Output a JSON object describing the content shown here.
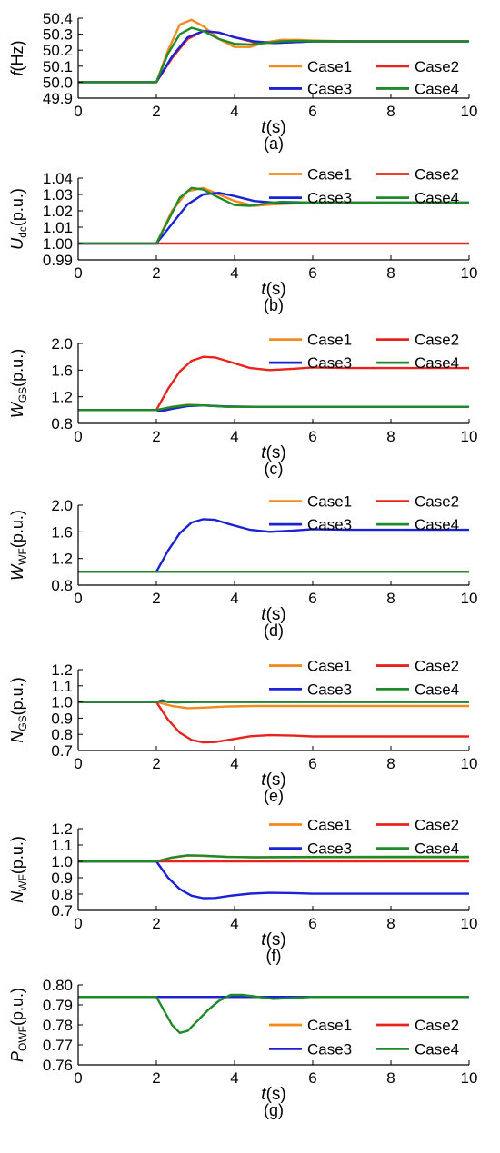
{
  "colors": {
    "Case1": "#f28a1e",
    "Case2": "#e8221c",
    "Case3": "#1a22d6",
    "Case4": "#1f8a2a"
  },
  "chart_data": [
    {
      "id": "a",
      "type": "line",
      "caption": "(a)",
      "ylabel": "f(Hz)",
      "ylabel_main": "f",
      "ylabel_sub": "",
      "ylabel_unit": "(Hz)",
      "ylabel_italic": true,
      "xlabel_main": "t",
      "xlabel_unit": "(s)",
      "xlim": [
        0,
        10
      ],
      "ylim": [
        49.9,
        50.4
      ],
      "xticks": [
        "0",
        "2",
        "4",
        "6",
        "8",
        "10"
      ],
      "yticks": [
        "49.9",
        "50.0",
        "50.1",
        "50.2",
        "50.3",
        "50.4"
      ],
      "legend": {
        "placement": "lower-right",
        "entries": [
          "Case1",
          "Case2",
          "Case3",
          "Case4"
        ]
      },
      "series": [
        {
          "name": "Case1",
          "x": [
            0,
            2,
            2.3,
            2.6,
            2.9,
            3.2,
            3.6,
            4.0,
            4.4,
            4.8,
            5.2,
            5.6,
            6.0,
            7,
            8,
            10
          ],
          "y": [
            50.0,
            50.0,
            50.2,
            50.36,
            50.39,
            50.35,
            50.27,
            50.22,
            50.22,
            50.25,
            50.265,
            50.265,
            50.26,
            50.255,
            50.255,
            50.255
          ]
        },
        {
          "name": "Case2",
          "x": [
            0,
            2,
            2.4,
            2.8,
            3.2,
            3.6,
            4.0,
            4.5,
            5.0,
            5.5,
            6.0,
            7,
            8,
            10
          ],
          "y": [
            50.0,
            50.0,
            50.15,
            50.27,
            50.32,
            50.31,
            50.28,
            50.25,
            50.245,
            50.25,
            50.255,
            50.255,
            50.255,
            50.255
          ]
        },
        {
          "name": "Case3",
          "x": [
            0,
            2,
            2.4,
            2.8,
            3.2,
            3.6,
            4.0,
            4.5,
            5.0,
            5.5,
            6.0,
            7,
            8,
            10
          ],
          "y": [
            50.0,
            50.0,
            50.16,
            50.28,
            50.32,
            50.31,
            50.28,
            50.255,
            50.245,
            50.25,
            50.255,
            50.255,
            50.255,
            50.255
          ]
        },
        {
          "name": "Case4",
          "x": [
            0,
            2,
            2.3,
            2.6,
            2.9,
            3.2,
            3.6,
            4.0,
            4.4,
            4.8,
            5.2,
            5.6,
            6.0,
            7,
            8,
            10
          ],
          "y": [
            50.0,
            50.0,
            50.18,
            50.3,
            50.34,
            50.32,
            50.27,
            50.24,
            50.235,
            50.245,
            50.255,
            50.258,
            50.255,
            50.255,
            50.255,
            50.255
          ]
        }
      ]
    },
    {
      "id": "b",
      "type": "line",
      "caption": "(b)",
      "ylabel": "Udc(p.u.)",
      "ylabel_main": "U",
      "ylabel_sub": "dc",
      "ylabel_unit": "(p.u.)",
      "ylabel_italic": true,
      "xlabel_main": "t",
      "xlabel_unit": "(s)",
      "xlim": [
        0,
        10
      ],
      "ylim": [
        0.99,
        1.04
      ],
      "xticks": [
        "0",
        "2",
        "4",
        "6",
        "8",
        "10"
      ],
      "yticks": [
        "0.99",
        "1.00",
        "1.01",
        "1.02",
        "1.03",
        "1.04"
      ],
      "legend": {
        "placement": "top-right",
        "entries": [
          "Case1",
          "Case2",
          "Case3",
          "Case4"
        ]
      },
      "series": [
        {
          "name": "Case1",
          "x": [
            0,
            2,
            2.4,
            2.8,
            3.2,
            3.6,
            4.0,
            4.5,
            5.0,
            6,
            7,
            8,
            10
          ],
          "y": [
            1.0,
            1.0,
            1.02,
            1.032,
            1.034,
            1.03,
            1.026,
            1.023,
            1.024,
            1.025,
            1.025,
            1.025,
            1.025
          ]
        },
        {
          "name": "Case2",
          "x": [
            0,
            2,
            4,
            6,
            8,
            10
          ],
          "y": [
            1.0,
            1.0,
            1.0,
            1.0,
            1.0,
            1.0
          ]
        },
        {
          "name": "Case3",
          "x": [
            0,
            2,
            2.4,
            2.8,
            3.2,
            3.6,
            4.0,
            4.5,
            5.0,
            5.5,
            6,
            7,
            8,
            10
          ],
          "y": [
            1.0,
            1.0,
            1.012,
            1.024,
            1.03,
            1.031,
            1.029,
            1.026,
            1.025,
            1.025,
            1.025,
            1.025,
            1.025,
            1.025
          ]
        },
        {
          "name": "Case4",
          "x": [
            0,
            2,
            2.3,
            2.6,
            2.9,
            3.2,
            3.6,
            4.0,
            4.4,
            4.8,
            5.2,
            6,
            7,
            8,
            10
          ],
          "y": [
            1.0,
            1.0,
            1.014,
            1.028,
            1.034,
            1.033,
            1.028,
            1.0235,
            1.023,
            1.0245,
            1.0255,
            1.025,
            1.025,
            1.025,
            1.025
          ]
        }
      ]
    },
    {
      "id": "c",
      "type": "line",
      "caption": "(c)",
      "ylabel": "WGS(p.u.)",
      "ylabel_main": "W",
      "ylabel_sub": "GS",
      "ylabel_unit": "(p.u.)",
      "ylabel_italic": true,
      "xlabel_main": "t",
      "xlabel_unit": "(s)",
      "xlim": [
        0,
        10
      ],
      "ylim": [
        0.8,
        2.0
      ],
      "xticks": [
        "0",
        "2",
        "4",
        "6",
        "8",
        "10"
      ],
      "yticks": [
        "0.8",
        "1.2",
        "1.6",
        "2.0"
      ],
      "legend": {
        "placement": "top-right",
        "entries": [
          "Case1",
          "Case2",
          "Case3",
          "Case4"
        ]
      },
      "series": [
        {
          "name": "Case1",
          "x": [
            0,
            2,
            2.4,
            2.8,
            3.2,
            3.8,
            4.5,
            6,
            8,
            10
          ],
          "y": [
            1.0,
            1.0,
            1.05,
            1.08,
            1.07,
            1.05,
            1.05,
            1.05,
            1.05,
            1.05
          ]
        },
        {
          "name": "Case2",
          "x": [
            0,
            2,
            2.3,
            2.6,
            2.9,
            3.2,
            3.5,
            3.9,
            4.4,
            4.9,
            5.5,
            6.0,
            7,
            8,
            10
          ],
          "y": [
            1.0,
            1.0,
            1.32,
            1.58,
            1.74,
            1.8,
            1.79,
            1.72,
            1.63,
            1.6,
            1.62,
            1.64,
            1.63,
            1.63,
            1.63
          ]
        },
        {
          "name": "Case3",
          "x": [
            0,
            2,
            2.1,
            2.4,
            2.8,
            3.2,
            3.8,
            4.5,
            6,
            8,
            10
          ],
          "y": [
            1.0,
            1.0,
            0.98,
            1.02,
            1.06,
            1.07,
            1.055,
            1.05,
            1.05,
            1.05,
            1.05
          ]
        },
        {
          "name": "Case4",
          "x": [
            0,
            2,
            2.4,
            2.8,
            3.2,
            3.8,
            4.5,
            6,
            8,
            10
          ],
          "y": [
            1.0,
            1.0,
            1.045,
            1.075,
            1.07,
            1.05,
            1.05,
            1.05,
            1.05,
            1.05
          ]
        }
      ]
    },
    {
      "id": "d",
      "type": "line",
      "caption": "(d)",
      "ylabel": "WWF(p.u.)",
      "ylabel_main": "W",
      "ylabel_sub": "WF",
      "ylabel_unit": "(p.u.)",
      "ylabel_italic": true,
      "xlabel_main": "t",
      "xlabel_unit": "(s)",
      "xlim": [
        0,
        10
      ],
      "ylim": [
        0.8,
        2.0
      ],
      "xticks": [
        "0",
        "2",
        "4",
        "6",
        "8",
        "10"
      ],
      "yticks": [
        "0.8",
        "1.2",
        "1.6",
        "2.0"
      ],
      "legend": {
        "placement": "top-right",
        "entries": [
          "Case1",
          "Case2",
          "Case3",
          "Case4"
        ]
      },
      "series": [
        {
          "name": "Case1",
          "x": [
            0,
            10
          ],
          "y": [
            1.0,
            1.0
          ]
        },
        {
          "name": "Case2",
          "x": [
            0,
            10
          ],
          "y": [
            1.0,
            1.0
          ]
        },
        {
          "name": "Case3",
          "x": [
            0,
            2,
            2.3,
            2.6,
            2.9,
            3.2,
            3.5,
            3.9,
            4.4,
            4.9,
            5.5,
            6.0,
            7,
            8,
            10
          ],
          "y": [
            1.0,
            1.0,
            1.32,
            1.58,
            1.74,
            1.79,
            1.78,
            1.71,
            1.63,
            1.6,
            1.62,
            1.64,
            1.63,
            1.63,
            1.63
          ]
        },
        {
          "name": "Case4",
          "x": [
            0,
            10
          ],
          "y": [
            1.0,
            1.0
          ]
        }
      ]
    },
    {
      "id": "e",
      "type": "line",
      "caption": "(e)",
      "ylabel": "NGS(p.u.)",
      "ylabel_main": "N",
      "ylabel_sub": "GS",
      "ylabel_unit": "(p.u.)",
      "ylabel_italic": true,
      "xlabel_main": "t",
      "xlabel_unit": "(s)",
      "xlim": [
        0,
        10
      ],
      "ylim": [
        0.7,
        1.2
      ],
      "xticks": [
        "0",
        "2",
        "4",
        "6",
        "8",
        "10"
      ],
      "yticks": [
        "0.7",
        "0.8",
        "0.9",
        "1.0",
        "1.1",
        "1.2"
      ],
      "legend": {
        "placement": "top-right",
        "entries": [
          "Case1",
          "Case2",
          "Case3",
          "Case4"
        ]
      },
      "series": [
        {
          "name": "Case1",
          "x": [
            0,
            2,
            2.4,
            2.8,
            3.2,
            3.8,
            4.5,
            6,
            8,
            10
          ],
          "y": [
            1.0,
            1.0,
            0.975,
            0.962,
            0.965,
            0.972,
            0.975,
            0.975,
            0.975,
            0.975
          ]
        },
        {
          "name": "Case2",
          "x": [
            0,
            2,
            2.3,
            2.6,
            2.9,
            3.2,
            3.5,
            3.9,
            4.4,
            4.9,
            5.5,
            6.0,
            7,
            8,
            10
          ],
          "y": [
            1.0,
            1.0,
            0.89,
            0.81,
            0.765,
            0.75,
            0.752,
            0.768,
            0.788,
            0.795,
            0.792,
            0.787,
            0.787,
            0.787,
            0.787
          ]
        },
        {
          "name": "Case3",
          "x": [
            0,
            2,
            2.15,
            2.3,
            2.5,
            3,
            4,
            6,
            8,
            10
          ],
          "y": [
            1.0,
            1.0,
            1.01,
            1.0,
            0.998,
            1.0,
            1.0,
            1.0,
            1.0,
            1.0
          ]
        },
        {
          "name": "Case4",
          "x": [
            0,
            2,
            2.15,
            2.3,
            2.5,
            3,
            4,
            6,
            8,
            10
          ],
          "y": [
            1.0,
            1.0,
            1.005,
            1.0,
            0.999,
            1.0,
            1.0,
            1.0,
            1.0,
            1.0
          ]
        }
      ]
    },
    {
      "id": "f",
      "type": "line",
      "caption": "(f)",
      "ylabel": "NWF(p.u.)",
      "ylabel_main": "N",
      "ylabel_sub": "WF",
      "ylabel_unit": "(p.u.)",
      "ylabel_italic": true,
      "xlabel_main": "t",
      "xlabel_unit": "(s)",
      "xlim": [
        0,
        10
      ],
      "ylim": [
        0.7,
        1.2
      ],
      "xticks": [
        "0",
        "2",
        "4",
        "6",
        "8",
        "10"
      ],
      "yticks": [
        "0.7",
        "0.8",
        "0.9",
        "1.0",
        "1.1",
        "1.2"
      ],
      "legend": {
        "placement": "top-right",
        "entries": [
          "Case1",
          "Case2",
          "Case3",
          "Case4"
        ]
      },
      "series": [
        {
          "name": "Case1",
          "x": [
            0,
            2,
            2.4,
            2.8,
            3.2,
            3.8,
            4.5,
            6,
            8,
            10
          ],
          "y": [
            1.0,
            1.0,
            1.022,
            1.035,
            1.033,
            1.027,
            1.025,
            1.025,
            1.025,
            1.025
          ]
        },
        {
          "name": "Case2",
          "x": [
            0,
            10
          ],
          "y": [
            1.0,
            1.0
          ]
        },
        {
          "name": "Case3",
          "x": [
            0,
            2,
            2.3,
            2.6,
            2.9,
            3.2,
            3.5,
            3.9,
            4.4,
            4.9,
            5.5,
            6.0,
            7,
            8,
            10
          ],
          "y": [
            1.0,
            1.0,
            0.9,
            0.83,
            0.79,
            0.775,
            0.776,
            0.79,
            0.803,
            0.808,
            0.806,
            0.802,
            0.802,
            0.802,
            0.802
          ]
        },
        {
          "name": "Case4",
          "x": [
            0,
            2,
            2.4,
            2.8,
            3.2,
            3.8,
            4.5,
            6,
            8,
            10
          ],
          "y": [
            1.0,
            1.0,
            1.024,
            1.037,
            1.035,
            1.028,
            1.025,
            1.027,
            1.028,
            1.028
          ]
        }
      ]
    },
    {
      "id": "g",
      "type": "line",
      "caption": "(g)",
      "ylabel": "POWF(p.u.)",
      "ylabel_main": "P",
      "ylabel_sub": "OWF",
      "ylabel_unit": "(p.u.)",
      "ylabel_italic": true,
      "xlabel_main": "t",
      "xlabel_unit": "(s)",
      "xlim": [
        0,
        10
      ],
      "ylim": [
        0.76,
        0.8
      ],
      "xticks": [
        "0",
        "2",
        "4",
        "6",
        "8",
        "10"
      ],
      "yticks": [
        "0.76",
        "0.77",
        "0.78",
        "0.79",
        "0.80"
      ],
      "legend": {
        "placement": "bottom-right",
        "entries": [
          "Case1",
          "Case2",
          "Case3",
          "Case4"
        ]
      },
      "series": [
        {
          "name": "Case1",
          "x": [
            0,
            10
          ],
          "y": [
            0.794,
            0.794
          ]
        },
        {
          "name": "Case2",
          "x": [
            0,
            10
          ],
          "y": [
            0.794,
            0.794
          ]
        },
        {
          "name": "Case3",
          "x": [
            0,
            10
          ],
          "y": [
            0.794,
            0.794
          ]
        },
        {
          "name": "Case4",
          "x": [
            0,
            2,
            2.2,
            2.4,
            2.6,
            2.8,
            3.0,
            3.3,
            3.6,
            3.9,
            4.2,
            4.6,
            5.0,
            6,
            8,
            10
          ],
          "y": [
            0.794,
            0.794,
            0.787,
            0.78,
            0.776,
            0.777,
            0.781,
            0.787,
            0.792,
            0.795,
            0.795,
            0.794,
            0.793,
            0.794,
            0.794,
            0.794
          ]
        }
      ]
    }
  ]
}
